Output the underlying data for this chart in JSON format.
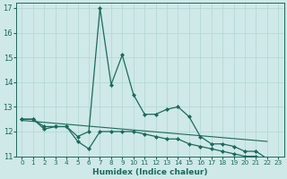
{
  "xlabel": "Humidex (Indice chaleur)",
  "background_color": "#cfe8e8",
  "grid_color": "#b0d8d0",
  "line_color": "#1a6b5a",
  "xlim": [
    -0.5,
    23.5
  ],
  "ylim": [
    11,
    17.2
  ],
  "yticks": [
    11,
    12,
    13,
    14,
    15,
    16,
    17
  ],
  "xticks": [
    0,
    1,
    2,
    3,
    4,
    5,
    6,
    7,
    8,
    9,
    10,
    11,
    12,
    13,
    14,
    15,
    16,
    17,
    18,
    19,
    20,
    21,
    22,
    23
  ],
  "series1_x": [
    0,
    1,
    2,
    3,
    4,
    5,
    6,
    7,
    8,
    9,
    10,
    11,
    12,
    13,
    14,
    15,
    16,
    17,
    18,
    19,
    20,
    21,
    22
  ],
  "series1_y": [
    12.5,
    12.5,
    12.2,
    12.2,
    12.2,
    11.8,
    12.0,
    17.0,
    13.9,
    15.1,
    13.5,
    12.7,
    12.7,
    12.9,
    13.0,
    12.6,
    11.8,
    11.5,
    11.5,
    11.4,
    11.2,
    11.2,
    10.9
  ],
  "series2_x": [
    0,
    1,
    2,
    3,
    4,
    5,
    6,
    7,
    8,
    9,
    10,
    11,
    12,
    13,
    14,
    15,
    16,
    17,
    18,
    19,
    20,
    21,
    22
  ],
  "series2_y": [
    12.5,
    12.5,
    12.1,
    12.2,
    12.2,
    11.6,
    11.3,
    12.0,
    12.0,
    12.0,
    12.0,
    11.9,
    11.8,
    11.7,
    11.7,
    11.5,
    11.4,
    11.3,
    11.2,
    11.1,
    11.0,
    11.0,
    10.85
  ],
  "series3_x": [
    0,
    22
  ],
  "series3_y": [
    12.45,
    11.6
  ]
}
